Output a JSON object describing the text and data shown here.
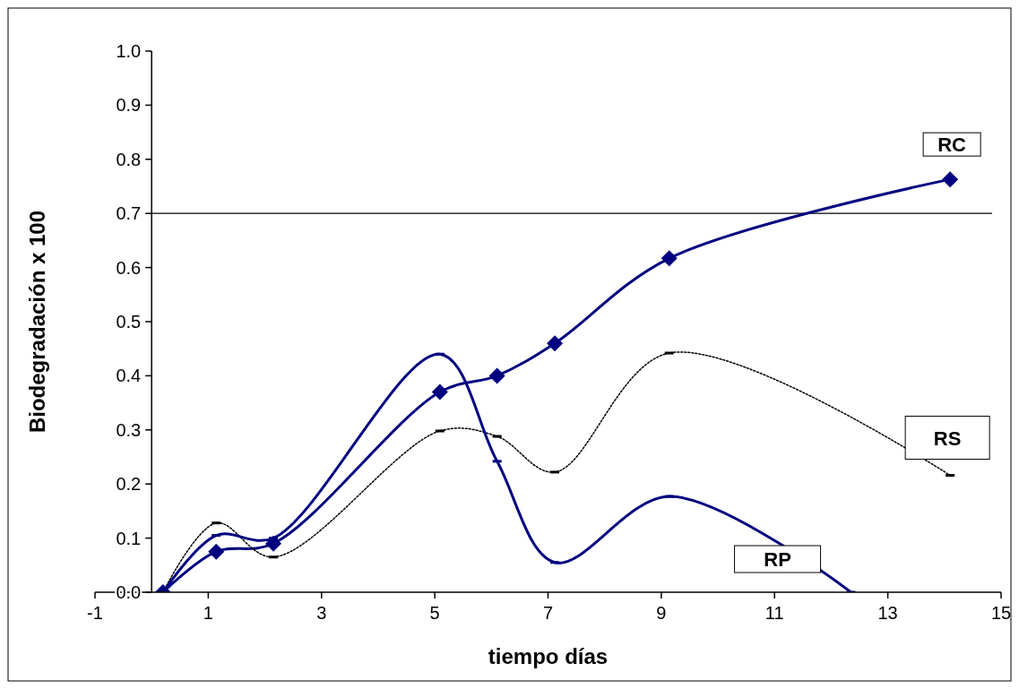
{
  "chart_data": {
    "type": "line",
    "xlabel": "tiempo días",
    "ylabel": "Biodegradación x 100",
    "x": [
      0.2,
      1.14,
      2.15,
      5.09,
      6.1,
      7.12,
      9.14,
      14.1
    ],
    "xlim": [
      -1,
      15
    ],
    "xticks": [
      -1,
      1,
      3,
      5,
      7,
      9,
      11,
      13,
      15
    ],
    "ylim": [
      0,
      1
    ],
    "yticks": [
      {
        "value": 0,
        "label": "0.0"
      },
      {
        "value": 0.1,
        "label": "0.1"
      },
      {
        "value": 0.2,
        "label": "0.2"
      },
      {
        "value": 0.3,
        "label": "0.3"
      },
      {
        "value": 0.4,
        "label": "0.4"
      },
      {
        "value": 0.5,
        "label": "0.5"
      },
      {
        "value": 0.6,
        "label": "0.6"
      },
      {
        "value": 0.7,
        "label": "0.7"
      },
      {
        "value": 0.8,
        "label": "0.8"
      },
      {
        "value": 0.9,
        "label": "0.9"
      },
      {
        "value": 1,
        "label": "1.0"
      }
    ],
    "grid": false,
    "ref_lines": [
      {
        "axis": "y",
        "value": 0.7,
        "color": "#000000"
      }
    ],
    "series": [
      {
        "name": "RC",
        "color": "#000080",
        "marker": "diamond",
        "line_style": "solid",
        "values": [
          0,
          0.075,
          0.09,
          0.37,
          0.4,
          0.46,
          0.617,
          0.763
        ]
      },
      {
        "name": "RS",
        "color": "#000000",
        "marker": "square",
        "line_style": "dotted",
        "values": [
          0,
          0.128,
          0.065,
          0.298,
          0.288,
          0.222,
          0.442,
          0.216
        ]
      },
      {
        "name": "RP",
        "color": "#000080",
        "marker": "square",
        "line_style": "solid",
        "x": [
          0.2,
          1.14,
          2.15,
          5.09,
          6.1,
          7.12,
          9.14,
          12.35
        ],
        "values": [
          0,
          0.105,
          0.1,
          0.44,
          0.242,
          0.055,
          0.177,
          0
        ]
      }
    ]
  }
}
